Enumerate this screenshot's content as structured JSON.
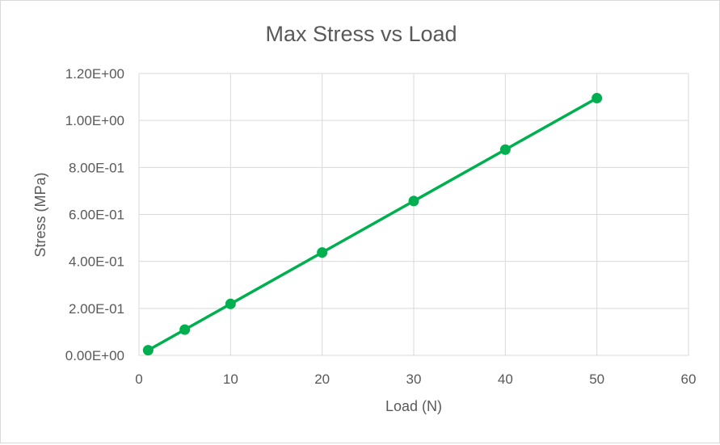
{
  "chart_data": {
    "type": "scatter",
    "title": "Max Stress vs Load",
    "xlabel": "Load (N)",
    "ylabel": "Stress (MPa)",
    "xlim": [
      0,
      60
    ],
    "ylim": [
      0,
      1.2
    ],
    "x_ticks": [
      "0",
      "10",
      "20",
      "30",
      "40",
      "50",
      "60"
    ],
    "y_ticks": [
      "0.00E+00",
      "2.00E-01",
      "4.00E-01",
      "6.00E-01",
      "8.00E-01",
      "1.00E+00",
      "1.20E+00"
    ],
    "grid": true,
    "legend": "none",
    "series": [
      {
        "color": "#00b050",
        "marker": "circle",
        "line": "straight",
        "points": [
          {
            "x": 1,
            "y": 0.0219
          },
          {
            "x": 5,
            "y": 0.1095
          },
          {
            "x": 10,
            "y": 0.219
          },
          {
            "x": 20,
            "y": 0.438
          },
          {
            "x": 30,
            "y": 0.657
          },
          {
            "x": 40,
            "y": 0.876
          },
          {
            "x": 50,
            "y": 1.095
          }
        ]
      }
    ]
  },
  "colors": {
    "gridline": "#d9d9d9",
    "text": "#595959",
    "series": "#00b050"
  }
}
